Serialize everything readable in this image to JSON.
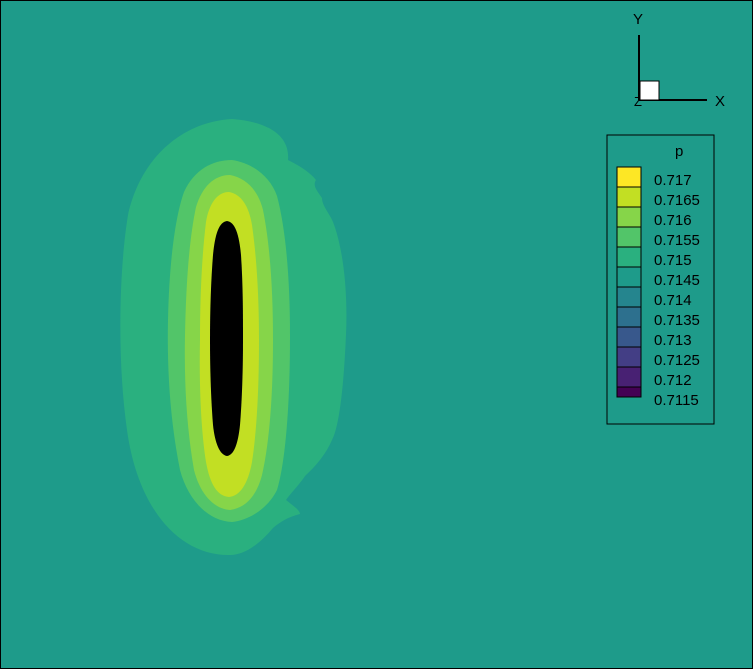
{
  "chart_data": {
    "type": "heatmap",
    "variable": "p",
    "axes": {
      "x_label": "X",
      "y_label": "Y",
      "z_label": "Z"
    },
    "legend": {
      "title": "p",
      "placement": "top-right",
      "levels": [
        {
          "value": "0.717",
          "color": "#fde725"
        },
        {
          "value": "0.7165",
          "color": "#c2df23"
        },
        {
          "value": "0.716",
          "color": "#86d549"
        },
        {
          "value": "0.7155",
          "color": "#52c569"
        },
        {
          "value": "0.715",
          "color": "#2ab07f"
        },
        {
          "value": "0.7145",
          "color": "#1e9b8a"
        },
        {
          "value": "0.714",
          "color": "#25858e"
        },
        {
          "value": "0.7135",
          "color": "#2d708e"
        },
        {
          "value": "0.713",
          "color": "#38588c"
        },
        {
          "value": "0.7125",
          "color": "#433e85"
        },
        {
          "value": "0.712",
          "color": "#482173"
        },
        {
          "value": "0.7115",
          "color": "#440154"
        }
      ]
    },
    "field": {
      "background_level": "0.7145",
      "contour_bands": [
        "0.715",
        "0.7155",
        "0.716",
        "0.7165"
      ]
    }
  }
}
